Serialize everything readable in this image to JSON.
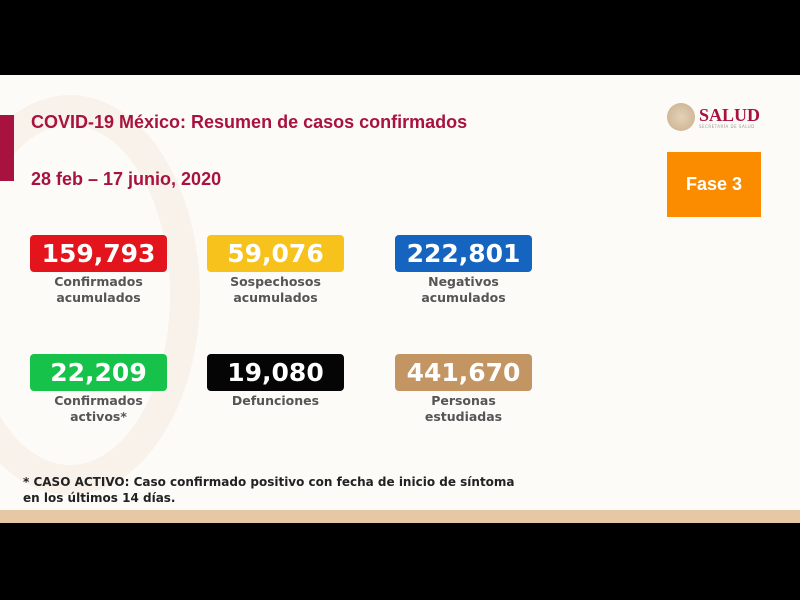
{
  "title": "COVID-19 México: Resumen de casos confirmados",
  "date_range": "28 feb – 17 junio, 2020",
  "logo": {
    "name": "SALUD",
    "subtitle": "SECRETARÍA DE SALUD"
  },
  "phase": "Fase 3",
  "stats": [
    {
      "value": "159,793",
      "label": "Confirmados\nacumulados",
      "color": "#e3141b"
    },
    {
      "value": "59,076",
      "label": "Sospechosos\nacumulados",
      "color": "#f7c21b"
    },
    {
      "value": "222,801",
      "label": "Negativos\nacumulados",
      "color": "#1565c0"
    },
    {
      "value": "22,209",
      "label": "Confirmados\nactivos*",
      "color": "#16c24a"
    },
    {
      "value": "19,080",
      "label": "Defunciones",
      "color": "#050505"
    },
    {
      "value": "441,670",
      "label": "Personas\nestudiadas",
      "color": "#c39563"
    }
  ],
  "footnote": "* CASO ACTIVO: Caso confirmado positivo con fecha de inicio de síntoma en los últimos 14 días."
}
